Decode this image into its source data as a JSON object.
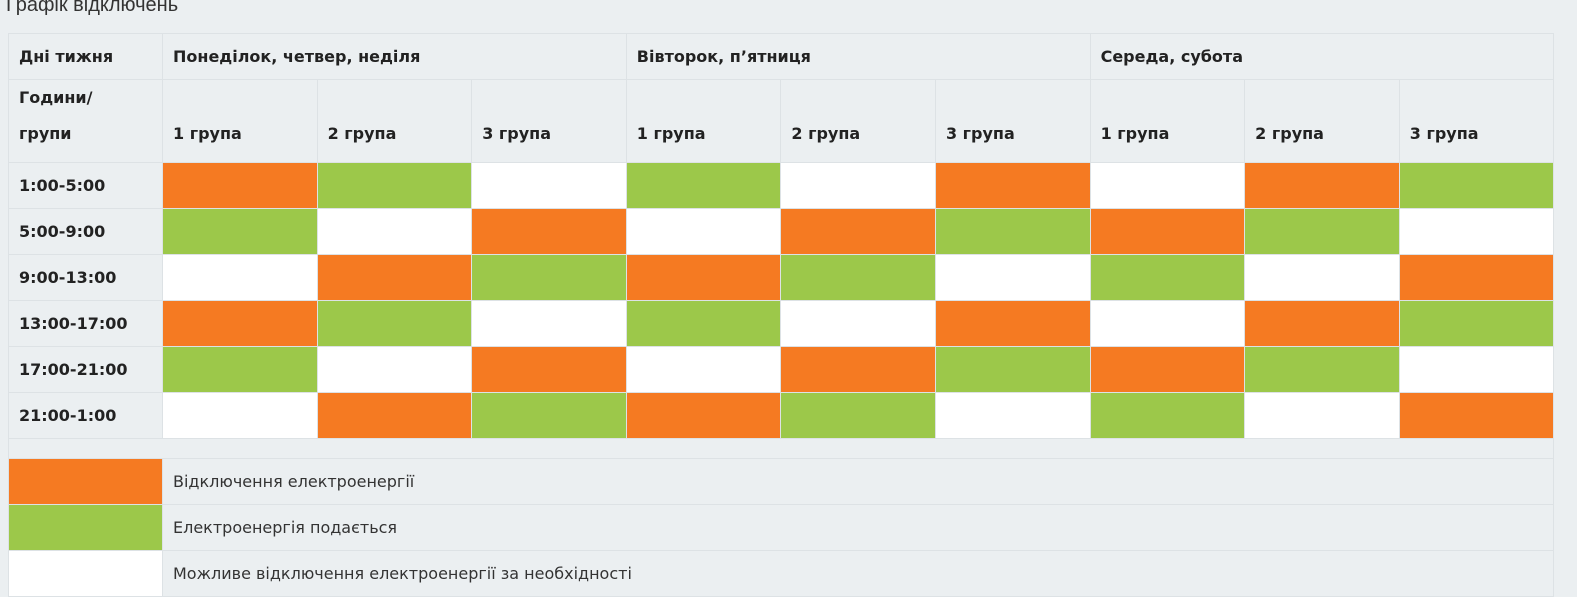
{
  "title": "Графік відключень",
  "header": {
    "days_label": "Дні тижня",
    "day_groups": [
      "Понеділок, четвер, неділя",
      "Вівторок, п’ятниця",
      "Середа, субота"
    ],
    "hours_label_line1": "Години/",
    "hours_label_line2": "групи",
    "groups": [
      "1 група",
      "2 група",
      "3 група"
    ]
  },
  "status_colors": {
    "O": "#f57a22",
    "G": "#9cc84a",
    "W": "#ffffff"
  },
  "rows": [
    {
      "time": "1:00-5:00",
      "cells": [
        "O",
        "G",
        "W",
        "G",
        "W",
        "O",
        "W",
        "O",
        "G"
      ]
    },
    {
      "time": "5:00-9:00",
      "cells": [
        "G",
        "W",
        "O",
        "W",
        "O",
        "G",
        "O",
        "G",
        "W"
      ]
    },
    {
      "time": "9:00-13:00",
      "cells": [
        "W",
        "O",
        "G",
        "O",
        "G",
        "W",
        "G",
        "W",
        "O"
      ]
    },
    {
      "time": "13:00-17:00",
      "cells": [
        "O",
        "G",
        "W",
        "G",
        "W",
        "O",
        "W",
        "O",
        "G"
      ]
    },
    {
      "time": "17:00-21:00",
      "cells": [
        "G",
        "W",
        "O",
        "W",
        "O",
        "G",
        "O",
        "G",
        "W"
      ]
    },
    {
      "time": "21:00-1:00",
      "cells": [
        "W",
        "O",
        "G",
        "O",
        "G",
        "W",
        "G",
        "W",
        "O"
      ]
    }
  ],
  "legend": [
    {
      "status": "O",
      "label": "Відключення електроенергії"
    },
    {
      "status": "G",
      "label": "Електроенергія подається"
    },
    {
      "status": "W",
      "label": "Можливе відключення електроенергії за необхідності"
    }
  ]
}
